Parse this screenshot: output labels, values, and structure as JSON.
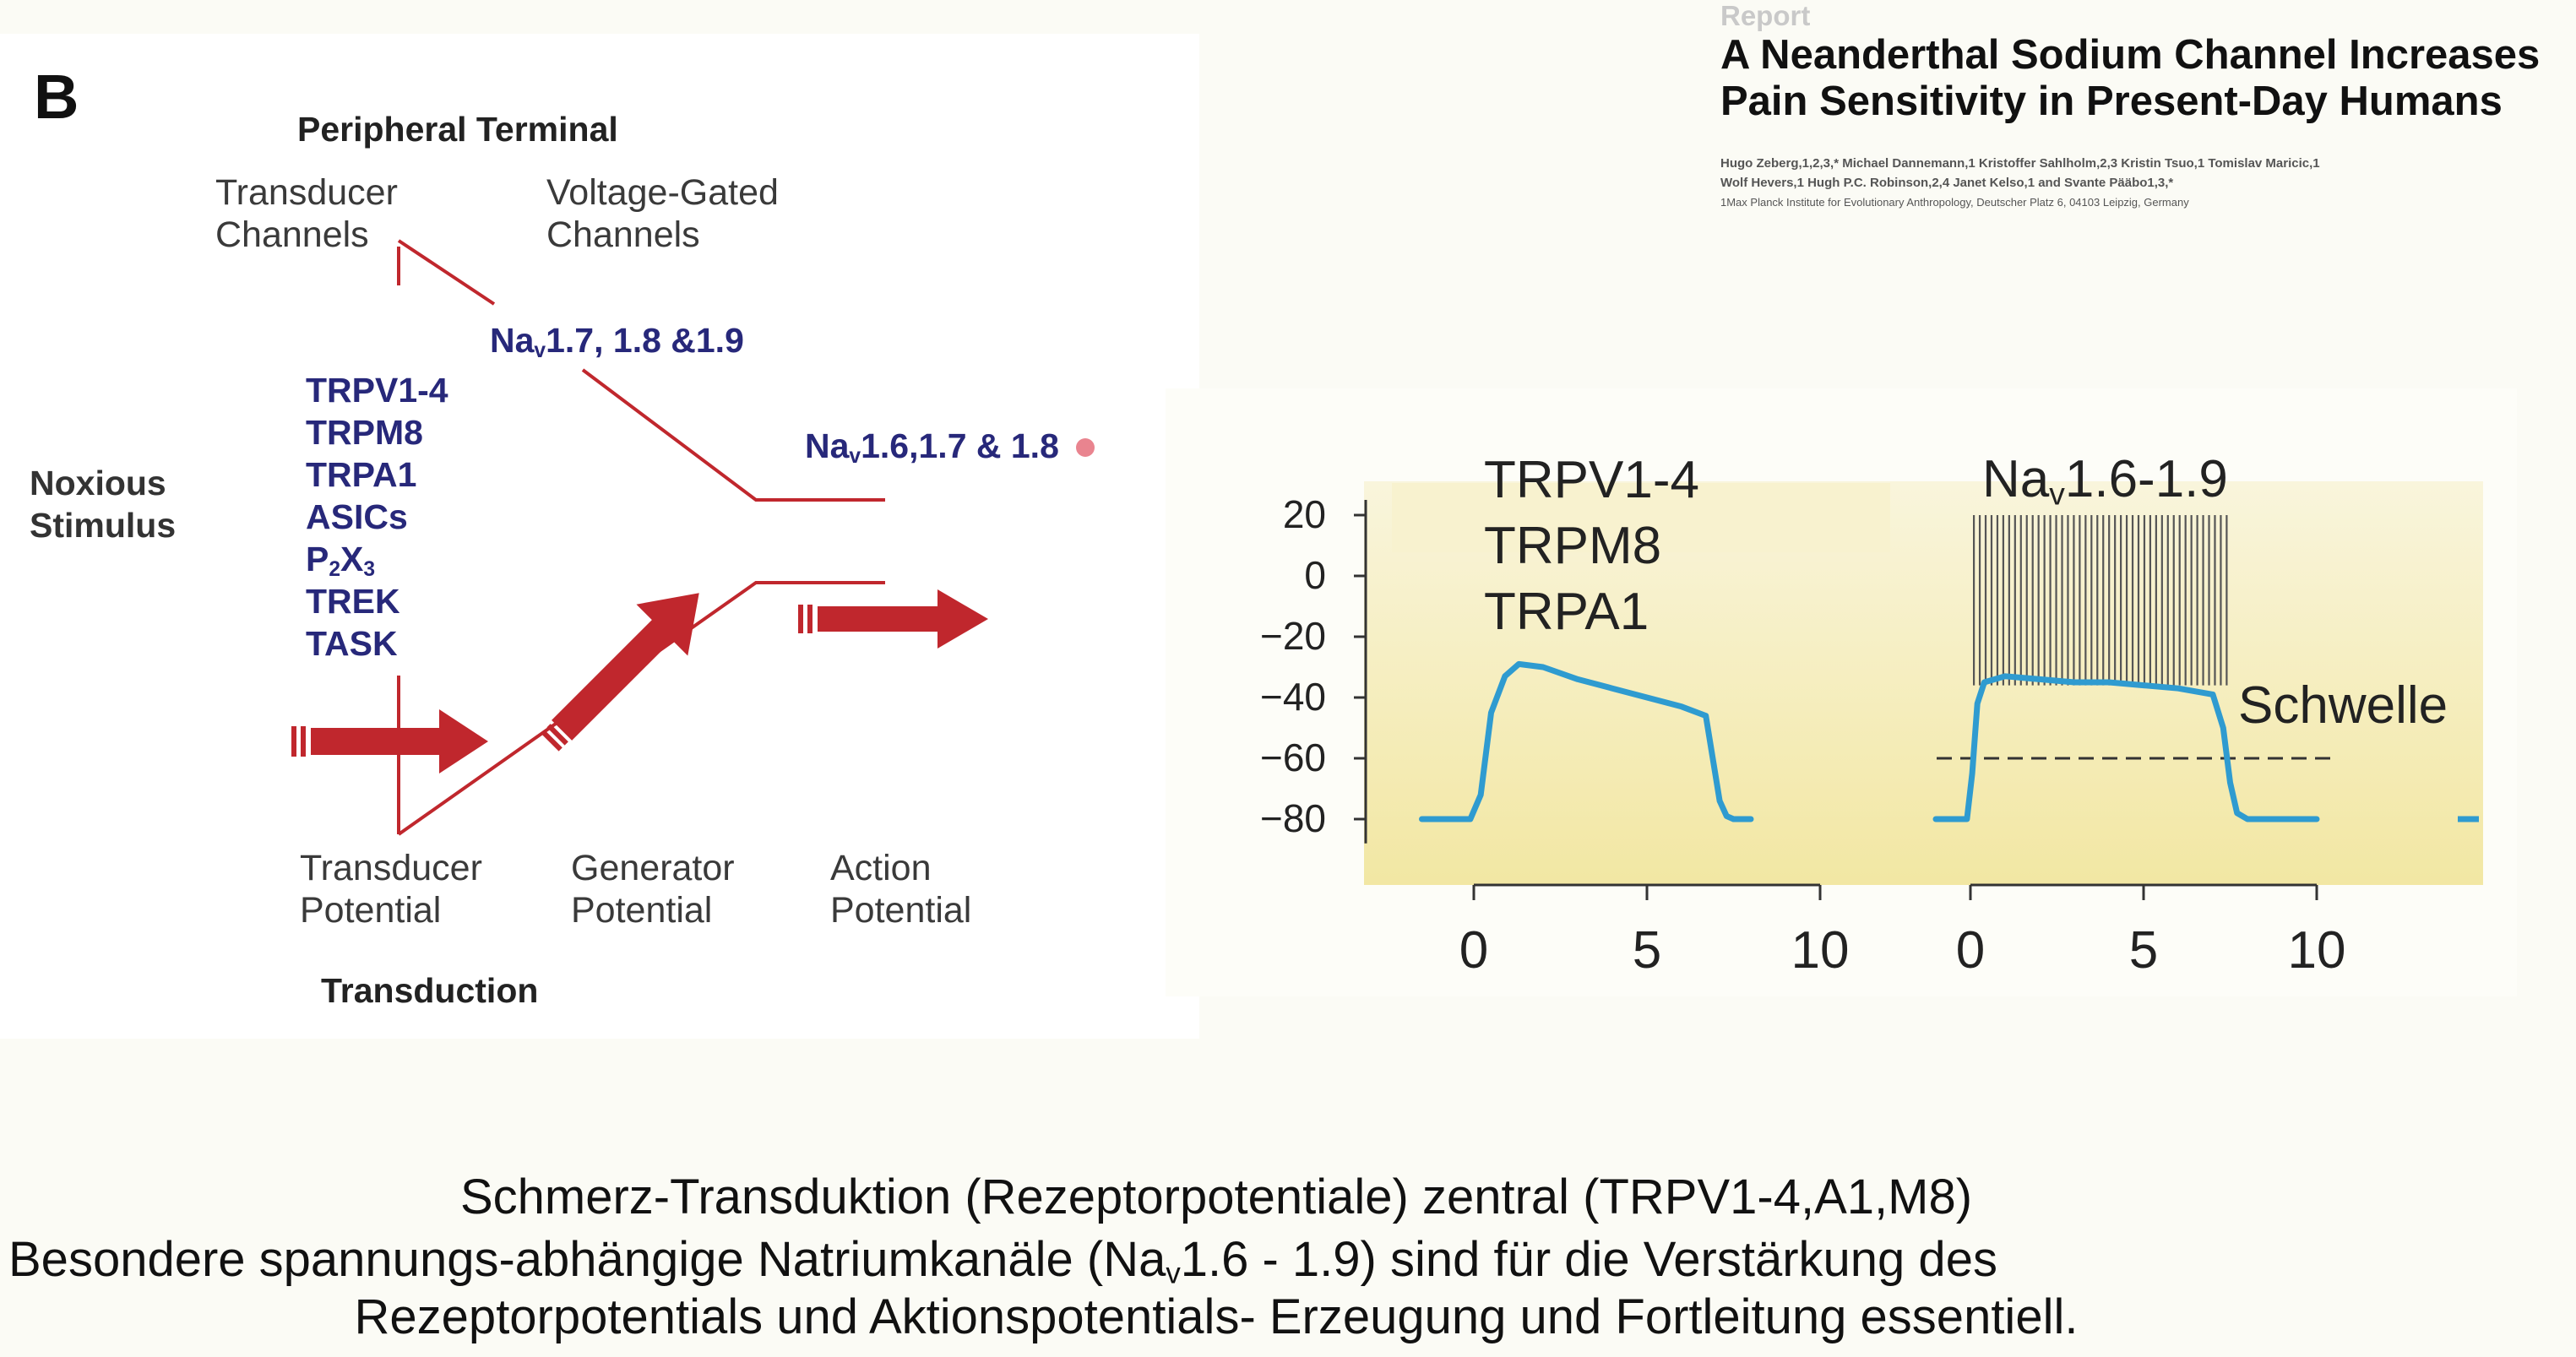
{
  "panel_label": "B",
  "diagram": {
    "header_top": "Peripheral Terminal",
    "transducer_channels": [
      "Transducer",
      "Channels"
    ],
    "voltage_gated_channels": [
      "Voltage-Gated",
      "Channels"
    ],
    "nav_upper": "Na<sub>v</sub>1.7, 1.8 &1.9",
    "nav_right": "Na<sub>v</sub>1.6,1.7 & 1.8",
    "noxious_stimulus": [
      "Noxious",
      "Stimulus"
    ],
    "channel_list": [
      "TRPV1-4",
      "TRPM8",
      "TRPA1",
      "ASICs",
      "P<sub>2</sub>X<sub>3</sub>",
      "TREK",
      "TASK"
    ],
    "transducer_potential": [
      "Transducer",
      "Potential"
    ],
    "generator_potential": [
      "Generator",
      "Potential"
    ],
    "action_potential": [
      "Action",
      "Potential"
    ],
    "footer": "Transduction",
    "colors": {
      "line": "#c0272d",
      "arrow": "#c0272d",
      "text_blue": "#27287a"
    }
  },
  "paper": {
    "kind": "Report",
    "title_line1": "A Neanderthal Sodium Channel Increases",
    "title_line2": "Pain Sensitivity in Present-Day Humans",
    "authors_line1": "Hugo Zeberg,1,2,3,* Michael Dannemann,1 Kristoffer Sahlholm,2,3 Kristin Tsuo,1 Tomislav Maricic,1",
    "authors_line2": "Wolf Hevers,1 Hugh P.C. Robinson,2,4 Janet Kelso,1 and Svante Pääbo1,3,*",
    "affiliation": "1Max Planck Institute for Evolutionary Anthropology, Deutscher Platz 6, 04103 Leipzig, Germany"
  },
  "plot_labels": {
    "left_channels": [
      "TRPV1-4",
      "TRPM8",
      "TRPA1"
    ],
    "right_channels": "Na<sub>v</sub>1.6-1.9",
    "threshold_label": "Schwelle"
  },
  "chart_data": {
    "type": "line",
    "ylim": [
      -90,
      25
    ],
    "yticks": [
      "20",
      "0",
      "-20",
      "-40",
      "-60",
      "-80"
    ],
    "xlim": [
      -1.5,
      10
    ],
    "xticks": [
      "0",
      "5",
      "10"
    ],
    "threshold": -60,
    "series": [
      {
        "x": [
          -1.5,
          -0.1,
          0.2,
          0.5,
          0.9,
          1.3,
          2,
          3,
          4,
          5,
          6,
          6.7,
          6.9,
          7.1,
          7.3,
          7.5,
          8
        ],
        "y": [
          -80,
          -80,
          -72,
          -45,
          -33,
          -29,
          -30,
          -34,
          -37,
          -40,
          -43,
          -46,
          -60,
          -74,
          -79,
          -80,
          -80
        ]
      },
      {
        "x": [
          -1,
          -0.1,
          0.05,
          0.2,
          0.4,
          1,
          2,
          3,
          4,
          5,
          6,
          7,
          7.3,
          7.5,
          7.7,
          8,
          10
        ],
        "y": [
          -80,
          -80,
          -65,
          -42,
          -35,
          -33,
          -34,
          -35,
          -35,
          -36,
          -37,
          -39,
          -50,
          -68,
          -78,
          -80,
          -80
        ],
        "spike_train": {
          "x_start": 0.1,
          "x_end": 7.4,
          "count": 44,
          "peak": 20
        }
      }
    ],
    "colors": {
      "trace": "#2f9bd0",
      "spikes": "#555555",
      "threshold": "#333333",
      "bg_top": "#f7f2d2",
      "bg_bottom": "#f3e8a6"
    }
  },
  "caption": {
    "line1": "Schmerz-Transduktion (Rezeptorpotentiale) zentral (TRPV1-4,A1,M8)",
    "line2": "Besondere spannungs-abhängige Natriumkanäle (Na<sub>v</sub>1.6 - 1.9) sind für die Verstärkung des",
    "line3": "Rezeptorpotentials und Aktionspotentials- Erzeugung und Fortleitung essentiell."
  }
}
